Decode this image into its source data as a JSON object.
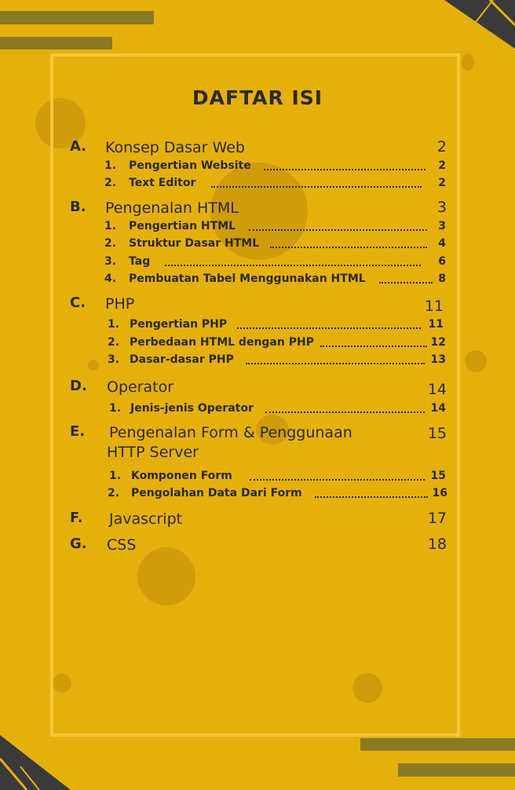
{
  "title": "DAFTAR ISI",
  "sections": [
    {
      "letter": "A.",
      "title": "Konsep Dasar Web",
      "page": "2",
      "items": [
        {
          "num": "1.",
          "text": "Pengertian Website",
          "page": "2"
        },
        {
          "num": "2.",
          "text": "Text Editor",
          "page": "2"
        }
      ]
    },
    {
      "letter": "B.",
      "title": "Pengenalan HTML",
      "page": "3",
      "items": [
        {
          "num": "1.",
          "text": "Pengertian HTML",
          "page": "3"
        },
        {
          "num": "2.",
          "text": "Struktur Dasar HTML",
          "page": "4"
        },
        {
          "num": "3.",
          "text": "Tag",
          "page": "6"
        },
        {
          "num": "4.",
          "text": "Pembuatan Tabel Menggunakan HTML",
          "page": "8"
        }
      ]
    },
    {
      "letter": "C.",
      "title": "PHP",
      "page": "11",
      "items": [
        {
          "num": "1.",
          "text": "Pengertian PHP",
          "page": "11"
        },
        {
          "num": "2.",
          "text": "Perbedaan HTML dengan PHP",
          "page": "12"
        },
        {
          "num": "3.",
          "text": "Dasar-dasar PHP",
          "page": "13"
        }
      ]
    },
    {
      "letter": "D.",
      "title": "Operator",
      "page": "14",
      "items": [
        {
          "num": "1.",
          "text": "Jenis-jenis Operator",
          "page": "14"
        }
      ]
    },
    {
      "letter": "E.",
      "title": "Pengenalan Form & Penggunaan HTTP Server",
      "page": "15",
      "items": [
        {
          "num": "1.",
          "text": "Komponen Form",
          "page": "15"
        },
        {
          "num": "2.",
          "text": "Pengolahan Data Dari Form",
          "page": "16"
        }
      ]
    },
    {
      "letter": "F.",
      "title": "Javascript",
      "page": "17",
      "items": []
    },
    {
      "letter": "G.",
      "title": "CSS",
      "page": "18",
      "items": []
    }
  ]
}
